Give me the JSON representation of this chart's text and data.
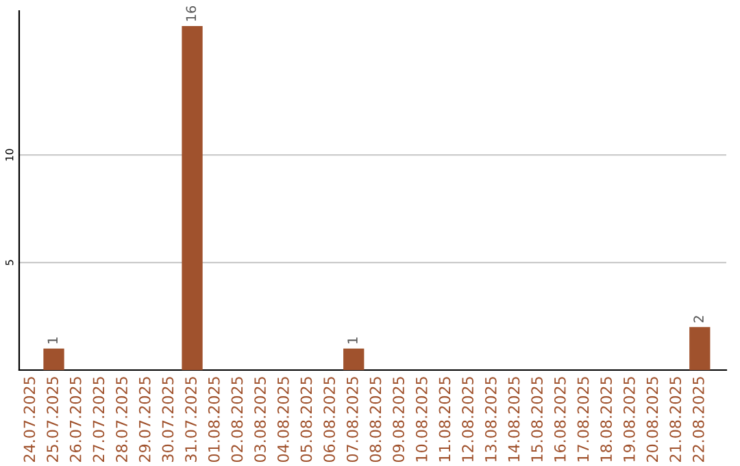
{
  "chart_data": {
    "type": "bar",
    "categories": [
      "24.07.2025",
      "25.07.2025",
      "26.07.2025",
      "27.07.2025",
      "28.07.2025",
      "29.07.2025",
      "30.07.2025",
      "31.07.2025",
      "01.08.2025",
      "02.08.2025",
      "03.08.2025",
      "04.08.2025",
      "05.08.2025",
      "06.08.2025",
      "07.08.2025",
      "08.08.2025",
      "09.08.2025",
      "10.08.2025",
      "11.08.2025",
      "12.08.2025",
      "13.08.2025",
      "14.08.2025",
      "15.08.2025",
      "16.08.2025",
      "17.08.2025",
      "18.08.2025",
      "19.08.2025",
      "20.08.2025",
      "21.08.2025",
      "22.08.2025"
    ],
    "values": [
      0,
      1,
      0,
      0,
      0,
      0,
      0,
      16,
      0,
      0,
      0,
      0,
      0,
      0,
      1,
      0,
      0,
      0,
      0,
      0,
      0,
      0,
      0,
      0,
      0,
      0,
      0,
      0,
      0,
      2
    ],
    "value_labels": [
      null,
      "1",
      null,
      null,
      null,
      null,
      null,
      "16",
      null,
      null,
      null,
      null,
      null,
      null,
      "1",
      null,
      null,
      null,
      null,
      null,
      null,
      null,
      null,
      null,
      null,
      null,
      null,
      null,
      null,
      "2"
    ],
    "color": "#a0522d",
    "ylim": [
      0,
      16.7
    ],
    "yticks": [
      5,
      10
    ],
    "grid": "y"
  }
}
